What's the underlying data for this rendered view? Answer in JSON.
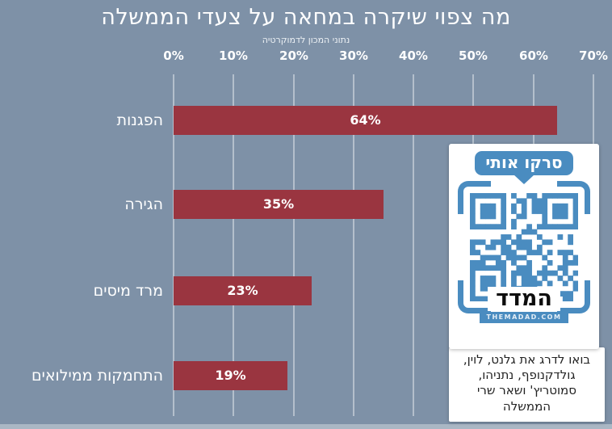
{
  "colors": {
    "background": "#7e91a7",
    "bar": "#9a3540",
    "gridline": "rgba(255,255,255,0.42)",
    "qr_blue": "#4a8cc0",
    "title_text": "#ffffff"
  },
  "chart_data": {
    "type": "bar",
    "orientation": "horizontal",
    "title": "מה צפוי שיקרה במחאה על צעדי הממשלה",
    "subtitle": "נתוני המכון לדמוקרטיה",
    "categories": [
      "הפגנות",
      "הגירה",
      "מרד מיסים",
      "התחמקות ממילואים"
    ],
    "values": [
      64,
      35,
      23,
      19
    ],
    "value_labels": [
      "64%",
      "35%",
      "23%",
      "19%"
    ],
    "x_ticks": [
      "0%",
      "10%",
      "20%",
      "30%",
      "40%",
      "50%",
      "60%",
      "70%"
    ],
    "xlim": [
      0,
      70
    ],
    "grid": true,
    "legend": false
  },
  "qr_card": {
    "bubble_label": "סרקו אותי",
    "logo": "המדד",
    "domain": "THEMADAD.COM",
    "caption": "בואו לדרג את גלנט, לוין, גולדקנופף, נתניהו, סמוטריץ' ושאר שרי הממשלה"
  }
}
